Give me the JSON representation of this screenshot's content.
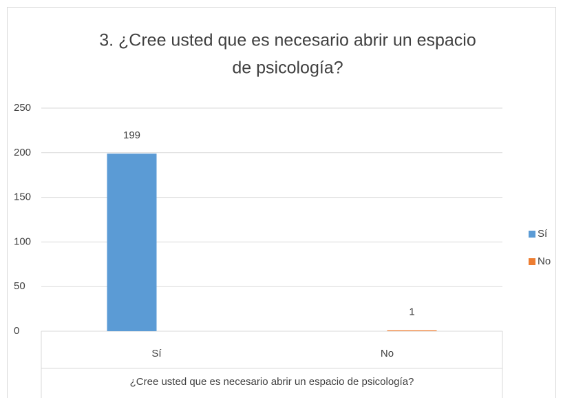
{
  "chart_data": {
    "type": "bar",
    "title": [
      "3. ¿Cree usted que es necesario abrir un espacio",
      "de psicología?"
    ],
    "x_label": "¿Cree usted que es necesario abrir un espacio de psicología?",
    "categories": [
      "Sí",
      "No"
    ],
    "series": [
      {
        "name": "Sí",
        "color": "#5b9bd5",
        "values": [
          199,
          null
        ]
      },
      {
        "name": "No",
        "color": "#ed7d31",
        "values": [
          null,
          1
        ]
      }
    ],
    "ylim": [
      0,
      250
    ],
    "yticks": [
      0,
      50,
      100,
      150,
      200,
      250
    ],
    "grid": true,
    "legend": "right"
  }
}
